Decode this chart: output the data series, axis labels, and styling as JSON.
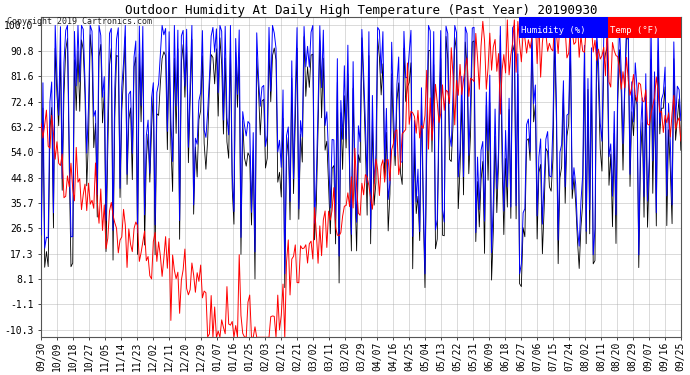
{
  "title": "Outdoor Humidity At Daily High Temperature (Past Year) 20190930",
  "copyright": "Copyright 2019 Cartronics.com",
  "legend_humidity": "Humidity (%)",
  "legend_temp": "Temp (°F)",
  "humidity_color": "#0000FF",
  "temp_color": "#FF0000",
  "black_color": "#000000",
  "bg_color": "#FFFFFF",
  "plot_bg_color": "#FFFFFF",
  "grid_color": "#AAAAAA",
  "yticks": [
    100.0,
    90.8,
    81.6,
    72.4,
    63.2,
    54.0,
    44.8,
    35.7,
    26.5,
    17.3,
    8.1,
    -1.1,
    -10.3
  ],
  "xtick_labels": [
    "09/30",
    "10/09",
    "10/18",
    "10/27",
    "11/05",
    "11/14",
    "11/23",
    "12/02",
    "12/11",
    "12/20",
    "12/29",
    "01/07",
    "01/16",
    "01/25",
    "02/03",
    "02/12",
    "02/21",
    "03/02",
    "03/11",
    "03/20",
    "03/29",
    "04/07",
    "04/16",
    "04/25",
    "05/04",
    "05/13",
    "05/22",
    "05/31",
    "06/09",
    "06/18",
    "06/27",
    "07/06",
    "07/15",
    "07/24",
    "08/02",
    "08/11",
    "08/20",
    "08/29",
    "09/07",
    "09/16",
    "09/25"
  ],
  "figsize": [
    6.9,
    3.75
  ],
  "dpi": 100
}
